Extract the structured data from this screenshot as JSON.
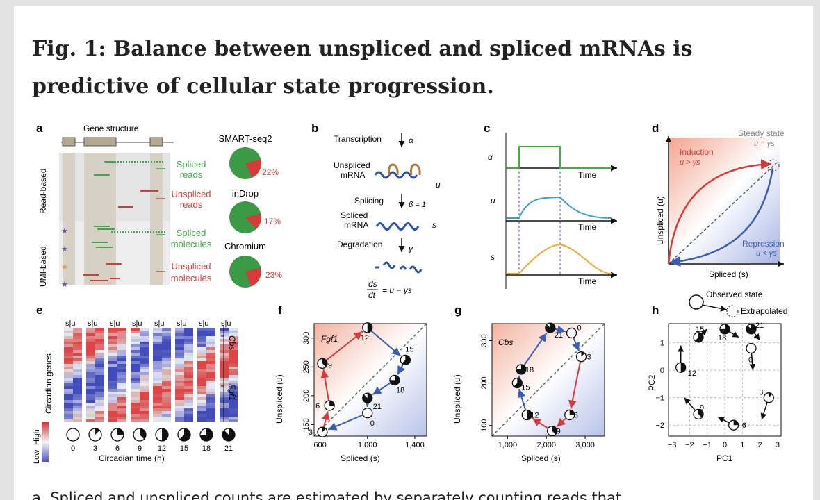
{
  "title": "Fig. 1: Balance between unspliced and spliced mRNAs is predictive of cellular state progression.",
  "caption": "a, Spliced and unspliced counts are estimated by separately counting reads that",
  "panels": {
    "a": {
      "letter": "a",
      "gene_structure": "Gene structure",
      "read_based": "Read-based",
      "umi_based": "UMI-based",
      "labels": [
        "Spliced",
        "reads",
        "Unspliced",
        "reads",
        "Spliced",
        "molecules",
        "Unspliced",
        "molecules"
      ],
      "protocols": [
        {
          "name": "SMART-seq2",
          "percent": "22%",
          "fraction": 0.22
        },
        {
          "name": "inDrop",
          "percent": "17%",
          "fraction": 0.17
        },
        {
          "name": "Chromium",
          "percent": "23%",
          "fraction": 0.23
        }
      ]
    },
    "b": {
      "letter": "b",
      "transcription": "Transcription",
      "alpha": "α",
      "unspliced": "Unspliced",
      "mrna": "mRNA",
      "u": "u",
      "splicing": "Splicing",
      "beta": "β = 1",
      "spliced": "Spliced",
      "s": "s",
      "degradation": "Degradation",
      "gamma": "γ",
      "eq_num": "ds",
      "eq_den": "dt",
      "eq_rhs": "= u − γs"
    },
    "c": {
      "letter": "c",
      "rows": [
        "α",
        "u",
        "s"
      ],
      "time": "Time"
    },
    "d": {
      "letter": "d",
      "steady": "Steady state",
      "steady_eq": "u = γs",
      "induction": "Induction",
      "induction_eq": "u > γs",
      "repression": "Repression",
      "repression_eq": "u < γs",
      "xlabel": "Spliced (s)",
      "ylabel": "Unspliced (u)"
    },
    "e": {
      "letter": "e",
      "col_header": "s|u",
      "ylabel": "Circadian genes",
      "genes": [
        "Cbs",
        "Fgf1"
      ],
      "xticks": [
        "0",
        "3",
        "6",
        "9",
        "12",
        "15",
        "18",
        "21"
      ],
      "xlabel": "Circadian time (h)",
      "low": "Low",
      "high": "High"
    },
    "f": {
      "letter": "f",
      "gene": "Fgf1",
      "xlabel": "Spliced (s)",
      "ylabel": "Unspliced (u)",
      "xticks": [
        "600",
        "1,000",
        "1,400"
      ],
      "yticks": [
        "150",
        "200",
        "250",
        "300"
      ]
    },
    "g": {
      "letter": "g",
      "gene": "Cbs",
      "xlabel": "Spliced (s)",
      "ylabel": "Unspliced (u)",
      "xticks": [
        "1,000",
        "2,000",
        "3,000"
      ],
      "yticks": [
        "100",
        "200",
        "300"
      ]
    },
    "h": {
      "letter": "h",
      "observed": "Observed state",
      "extrapolated": "Extrapolated",
      "xlabel": "PC1",
      "ylabel": "PC2",
      "xticks": [
        "−3",
        "−2",
        "−1",
        "0",
        "1",
        "2",
        "3"
      ],
      "yticks": [
        "1",
        "0",
        "−1",
        "−2"
      ]
    }
  },
  "chart_data": [
    {
      "type": "scatter",
      "panel": "f",
      "title": "Fgf1",
      "xlabel": "Spliced (s)",
      "ylabel": "Unspliced (u)",
      "xlim": [
        550,
        1500
      ],
      "ylim": [
        130,
        325
      ],
      "points": [
        {
          "label": "0",
          "x": 1000,
          "y": 170
        },
        {
          "label": "3",
          "x": 620,
          "y": 137
        },
        {
          "label": "6",
          "x": 680,
          "y": 183
        },
        {
          "label": "9",
          "x": 620,
          "y": 256
        },
        {
          "label": "12",
          "x": 1000,
          "y": 318
        },
        {
          "label": "15",
          "x": 1320,
          "y": 262
        },
        {
          "label": "18",
          "x": 1230,
          "y": 227
        },
        {
          "label": "21",
          "x": 1000,
          "y": 196
        }
      ]
    },
    {
      "type": "scatter",
      "panel": "g",
      "title": "Cbs",
      "xlabel": "Spliced (s)",
      "ylabel": "Unspliced (u)",
      "xlim": [
        600,
        3500
      ],
      "ylim": [
        75,
        340
      ],
      "points": [
        {
          "label": "0",
          "x": 2650,
          "y": 318
        },
        {
          "label": "3",
          "x": 2900,
          "y": 262
        },
        {
          "label": "6",
          "x": 2600,
          "y": 125
        },
        {
          "label": "9",
          "x": 2150,
          "y": 87
        },
        {
          "label": "12",
          "x": 1500,
          "y": 125
        },
        {
          "label": "15",
          "x": 1250,
          "y": 200
        },
        {
          "label": "18",
          "x": 1350,
          "y": 232
        },
        {
          "label": "21",
          "x": 2100,
          "y": 330
        }
      ]
    },
    {
      "type": "scatter",
      "panel": "h",
      "xlabel": "PC1",
      "ylabel": "PC2",
      "xlim": [
        -3.2,
        3.2
      ],
      "ylim": [
        -2.4,
        1.7
      ],
      "points": [
        {
          "label": "0",
          "x": 1.5,
          "y": 0.8
        },
        {
          "label": "3",
          "x": 2.5,
          "y": -1.0
        },
        {
          "label": "6",
          "x": 0.5,
          "y": -2.0
        },
        {
          "label": "9",
          "x": -1.5,
          "y": -1.6
        },
        {
          "label": "12",
          "x": -2.5,
          "y": 0.1
        },
        {
          "label": "15",
          "x": -1.5,
          "y": 1.2
        },
        {
          "label": "18",
          "x": 0,
          "y": 1.5
        },
        {
          "label": "21",
          "x": 1.5,
          "y": 1.5
        }
      ]
    }
  ]
}
